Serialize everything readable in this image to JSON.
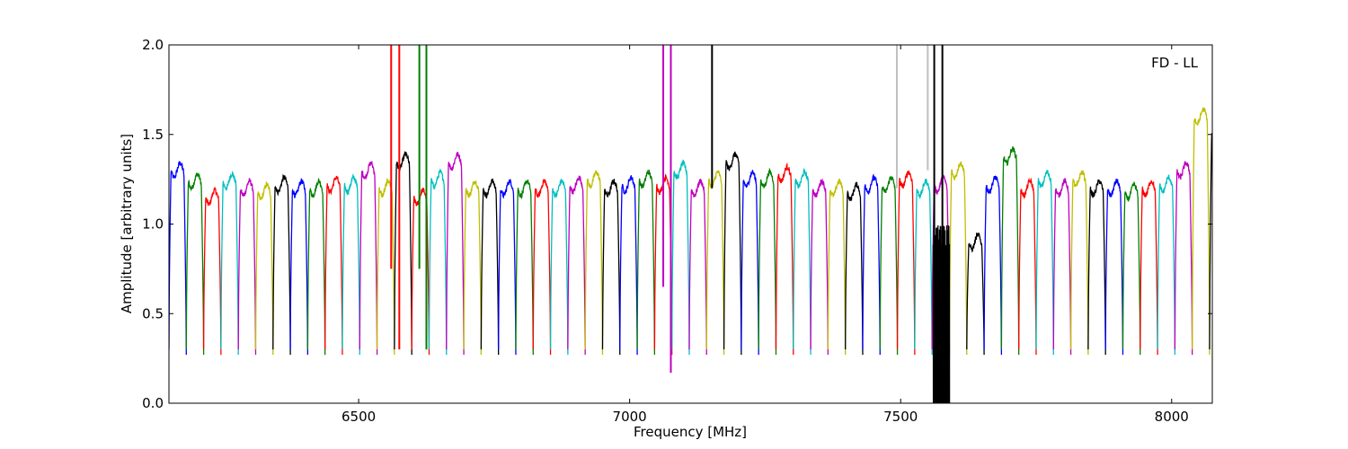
{
  "chart_data": {
    "type": "line",
    "title": "",
    "annotation": "FD - LL",
    "xlabel": "Frequency [MHz]",
    "ylabel": "Amplitude [arbitrary units]",
    "xlim": [
      6150,
      8075
    ],
    "ylim": [
      0,
      2.0
    ],
    "x_ticks": [
      6500,
      7000,
      7500,
      8000
    ],
    "x_tick_labels": [
      "6500",
      "7000",
      "7500",
      "8000"
    ],
    "y_ticks": [
      0.0,
      0.5,
      1.0,
      1.5,
      2.0
    ],
    "y_tick_labels": [
      "0.0",
      "0.5",
      "1.0",
      "1.5",
      "2.0"
    ],
    "grid": false,
    "legend": "none",
    "series_colors": [
      "#0000ff",
      "#008000",
      "#ff0000",
      "#00bfbf",
      "#bf00bf",
      "#bfbf00",
      "#000000"
    ],
    "channel_width_mhz": 32,
    "channels": [
      {
        "start": 6150,
        "color": "#0000ff",
        "level": 1.3
      },
      {
        "start": 6182,
        "color": "#008000",
        "level": 1.24
      },
      {
        "start": 6214,
        "color": "#ff0000",
        "level": 1.15
      },
      {
        "start": 6246,
        "color": "#00bfbf",
        "level": 1.24
      },
      {
        "start": 6278,
        "color": "#bf00bf",
        "level": 1.2
      },
      {
        "start": 6310,
        "color": "#bfbf00",
        "level": 1.18
      },
      {
        "start": 6342,
        "color": "#000000",
        "level": 1.22
      },
      {
        "start": 6374,
        "color": "#0000ff",
        "level": 1.2
      },
      {
        "start": 6406,
        "color": "#008000",
        "level": 1.2
      },
      {
        "start": 6438,
        "color": "#ff0000",
        "level": 1.22
      },
      {
        "start": 6470,
        "color": "#00bfbf",
        "level": 1.22
      },
      {
        "start": 6502,
        "color": "#bf00bf",
        "level": 1.3
      },
      {
        "start": 6534,
        "color": "#bfbf00",
        "level": 1.2
      },
      {
        "start": 6566,
        "color": "#000000",
        "level": 1.35
      },
      {
        "start": 6598,
        "color": "#ff0000",
        "level": 1.15
      },
      {
        "start": 6630,
        "color": "#00bfbf",
        "level": 1.25
      },
      {
        "start": 6662,
        "color": "#bf00bf",
        "level": 1.35
      },
      {
        "start": 6694,
        "color": "#bfbf00",
        "level": 1.2
      },
      {
        "start": 6726,
        "color": "#000000",
        "level": 1.2
      },
      {
        "start": 6758,
        "color": "#0000ff",
        "level": 1.2
      },
      {
        "start": 6790,
        "color": "#008000",
        "level": 1.2
      },
      {
        "start": 6822,
        "color": "#ff0000",
        "level": 1.2
      },
      {
        "start": 6854,
        "color": "#00bfbf",
        "level": 1.2
      },
      {
        "start": 6886,
        "color": "#bf00bf",
        "level": 1.22
      },
      {
        "start": 6918,
        "color": "#bfbf00",
        "level": 1.25
      },
      {
        "start": 6950,
        "color": "#000000",
        "level": 1.2
      },
      {
        "start": 6982,
        "color": "#0000ff",
        "level": 1.22
      },
      {
        "start": 7014,
        "color": "#008000",
        "level": 1.25
      },
      {
        "start": 7046,
        "color": "#ff0000",
        "level": 1.22
      },
      {
        "start": 7078,
        "color": "#00bfbf",
        "level": 1.3
      },
      {
        "start": 7110,
        "color": "#bf00bf",
        "level": 1.2
      },
      {
        "start": 7142,
        "color": "#bfbf00",
        "level": 1.25
      },
      {
        "start": 7174,
        "color": "#000000",
        "level": 1.35
      },
      {
        "start": 7206,
        "color": "#0000ff",
        "level": 1.25
      },
      {
        "start": 7238,
        "color": "#008000",
        "level": 1.25
      },
      {
        "start": 7270,
        "color": "#ff0000",
        "level": 1.28
      },
      {
        "start": 7302,
        "color": "#00bfbf",
        "level": 1.25
      },
      {
        "start": 7334,
        "color": "#bf00bf",
        "level": 1.2
      },
      {
        "start": 7366,
        "color": "#bfbf00",
        "level": 1.2
      },
      {
        "start": 7398,
        "color": "#000000",
        "level": 1.18
      },
      {
        "start": 7430,
        "color": "#0000ff",
        "level": 1.22
      },
      {
        "start": 7462,
        "color": "#008000",
        "level": 1.22
      },
      {
        "start": 7494,
        "color": "#ff0000",
        "level": 1.25
      },
      {
        "start": 7526,
        "color": "#00bfbf",
        "level": 1.2
      },
      {
        "start": 7558,
        "color": "#bf00bf",
        "level": 1.22
      },
      {
        "start": 7590,
        "color": "#bfbf00",
        "level": 1.3
      },
      {
        "start": 7622,
        "color": "#000000",
        "level": 0.9
      },
      {
        "start": 7654,
        "color": "#0000ff",
        "level": 1.22
      },
      {
        "start": 7686,
        "color": "#008000",
        "level": 1.38
      },
      {
        "start": 7718,
        "color": "#ff0000",
        "level": 1.2
      },
      {
        "start": 7750,
        "color": "#00bfbf",
        "level": 1.25
      },
      {
        "start": 7782,
        "color": "#bf00bf",
        "level": 1.2
      },
      {
        "start": 7814,
        "color": "#bfbf00",
        "level": 1.25
      },
      {
        "start": 7846,
        "color": "#000000",
        "level": 1.2
      },
      {
        "start": 7878,
        "color": "#0000ff",
        "level": 1.2
      },
      {
        "start": 7910,
        "color": "#008000",
        "level": 1.18
      },
      {
        "start": 7942,
        "color": "#ff0000",
        "level": 1.2
      },
      {
        "start": 7974,
        "color": "#00bfbf",
        "level": 1.22
      },
      {
        "start": 8006,
        "color": "#bf00bf",
        "level": 1.3
      },
      {
        "start": 8038,
        "color": "#bfbf00",
        "level": 1.6
      },
      {
        "start": 8070,
        "color": "#000000",
        "level": 1.5
      }
    ],
    "spikes": [
      {
        "x": 6560,
        "color": "#ff0000",
        "y_min": 0.75,
        "y_max": 2.0
      },
      {
        "x": 6575,
        "color": "#ff0000",
        "y_min": 0.3,
        "y_max": 2.0
      },
      {
        "x": 6612,
        "color": "#008000",
        "y_min": 0.75,
        "y_max": 2.0
      },
      {
        "x": 6625,
        "color": "#008000",
        "y_min": 0.3,
        "y_max": 2.0
      },
      {
        "x": 7062,
        "color": "#bf00bf",
        "y_min": 0.65,
        "y_max": 2.0
      },
      {
        "x": 7076,
        "color": "#bf00bf",
        "y_min": 0.17,
        "y_max": 2.0
      },
      {
        "x": 7152,
        "color": "#000000",
        "y_min": 1.2,
        "y_max": 2.0
      },
      {
        "x": 7493,
        "color": "#bfbfbf",
        "y_min": 1.2,
        "y_max": 2.0
      },
      {
        "x": 7550,
        "color": "#bfbfbf",
        "y_min": 1.3,
        "y_max": 2.0
      },
      {
        "x": 7562,
        "color": "#000000",
        "y_min": 0.0,
        "y_max": 2.0
      },
      {
        "x": 7577,
        "color": "#000000",
        "y_min": 0.0,
        "y_max": 2.0
      }
    ],
    "noise_band": {
      "x_start": 7560,
      "x_end": 7590,
      "color": "#000000",
      "y_min": 0.0,
      "y_max": 1.0
    }
  }
}
